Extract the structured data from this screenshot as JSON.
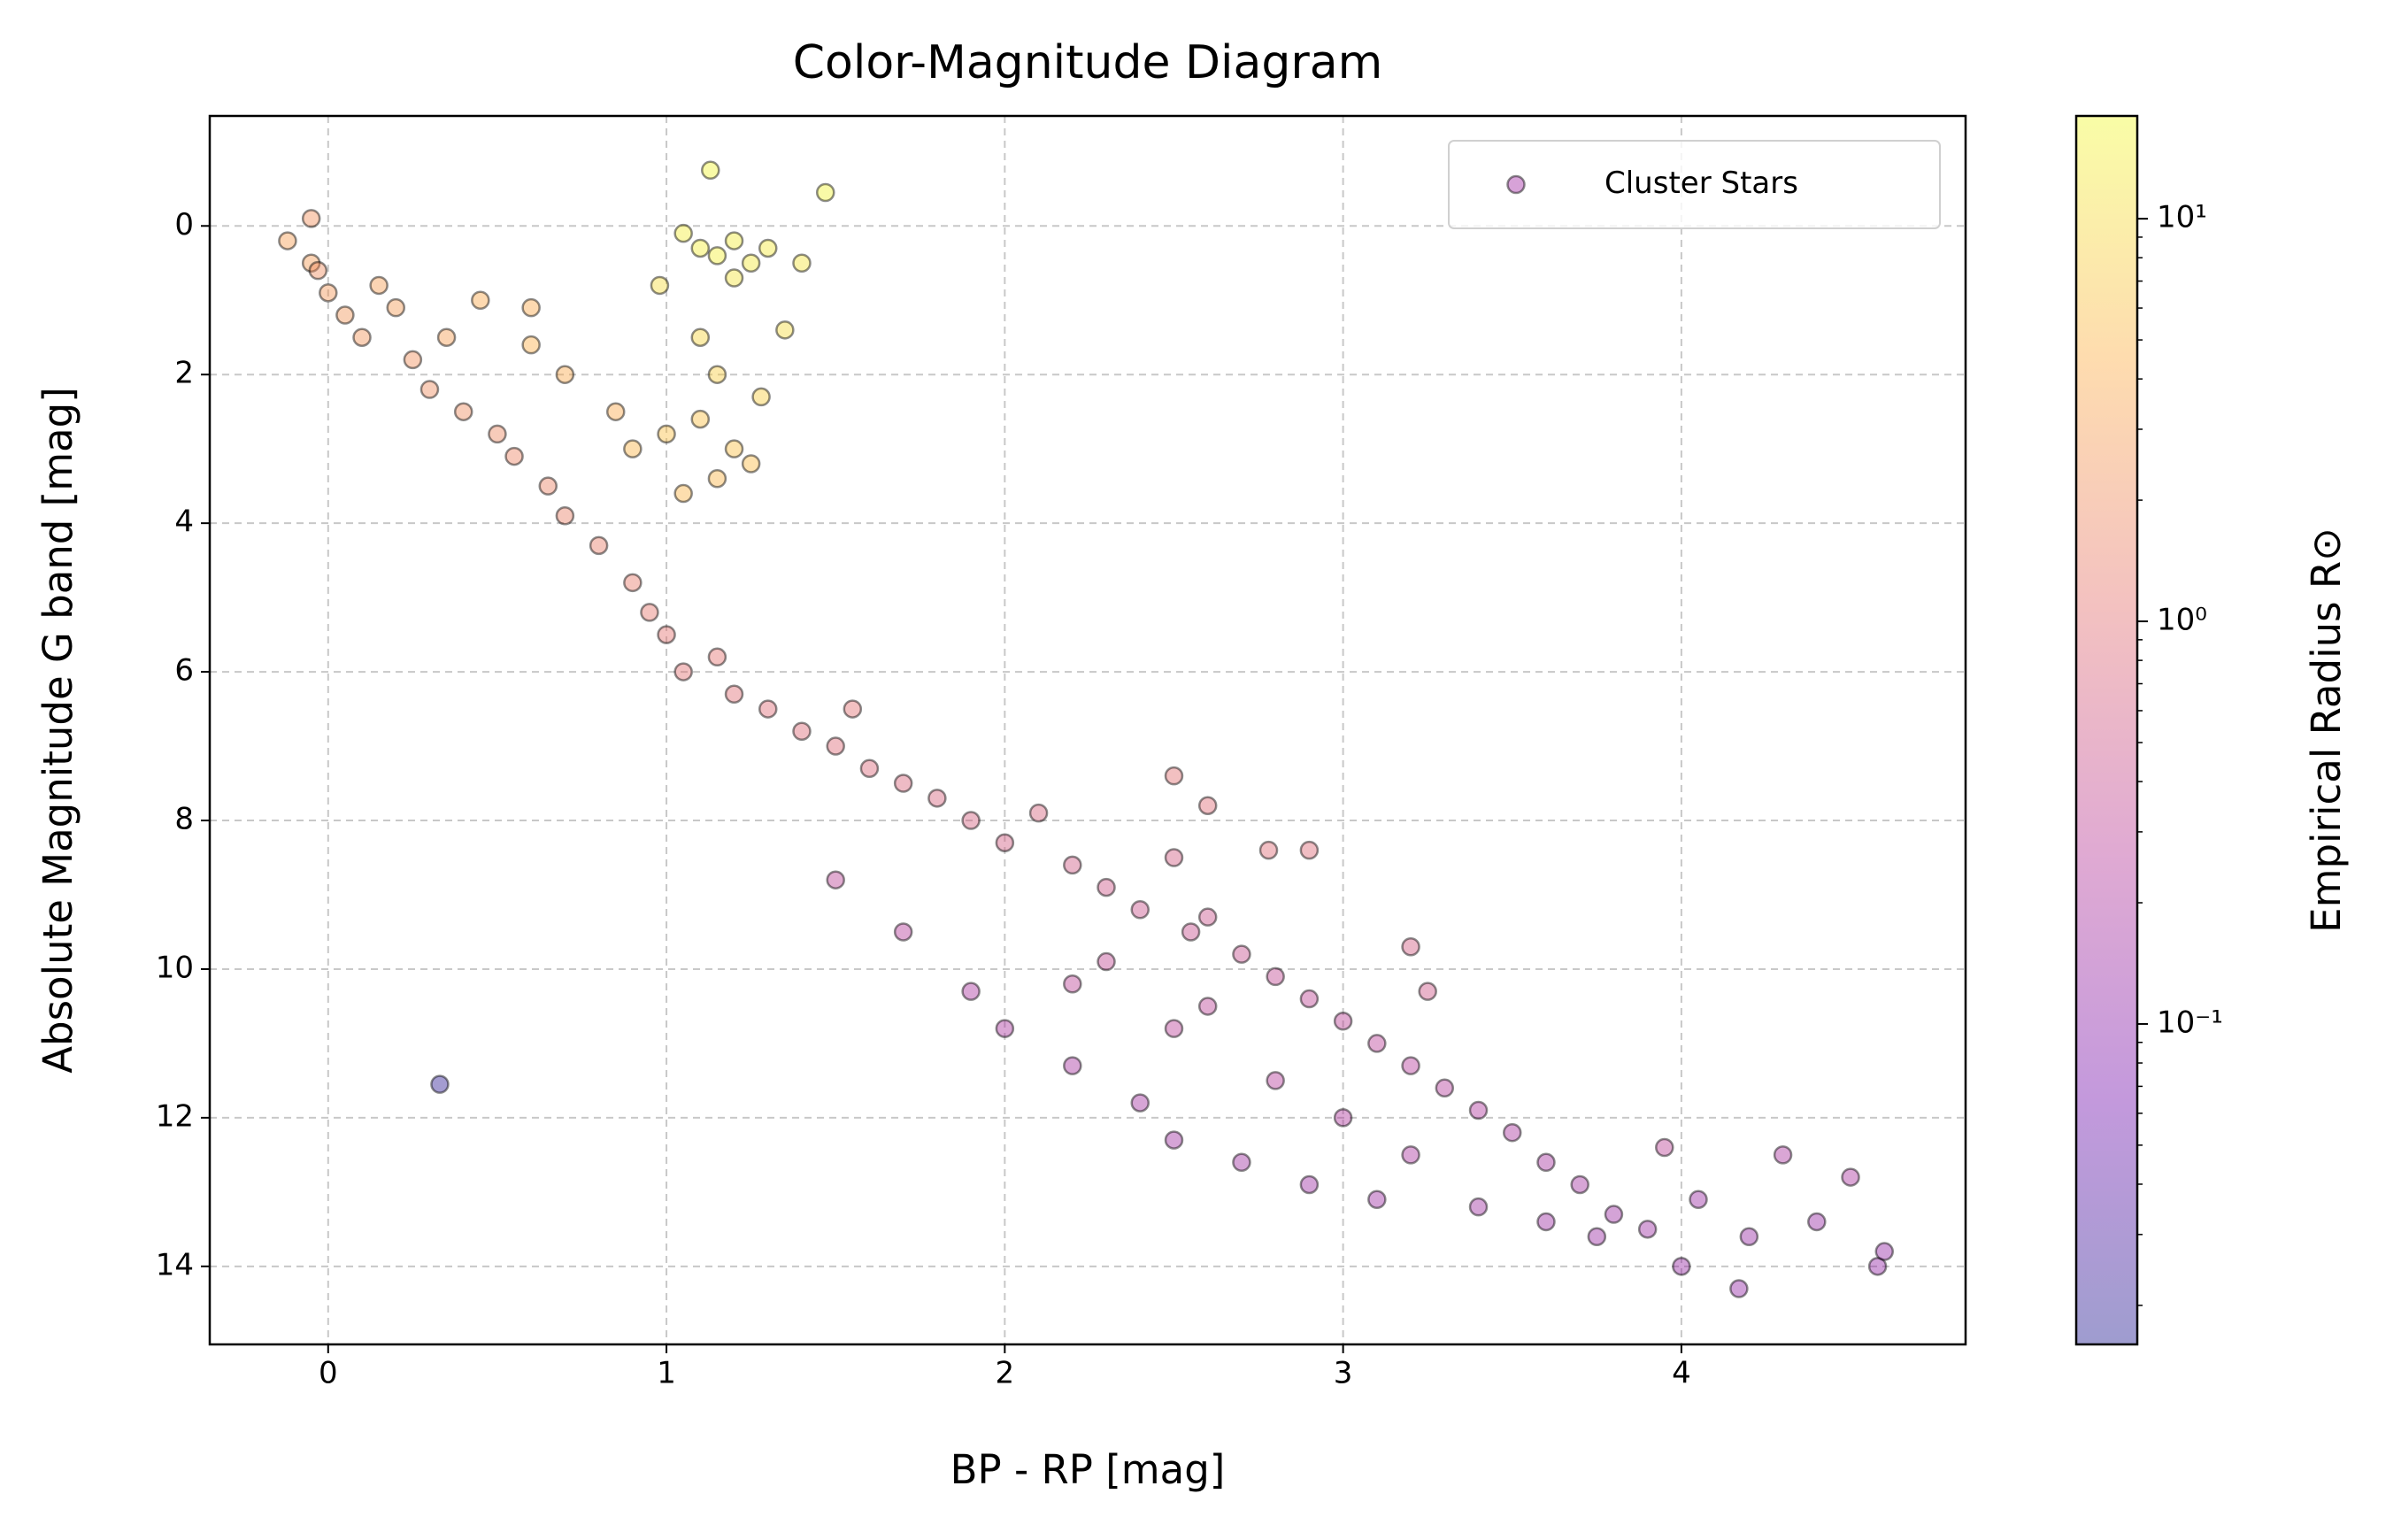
{
  "chart_data": {
    "type": "scatter",
    "title": "Color-Magnitude Diagram",
    "x_label": "BP - RP [mag]",
    "y_label": "Absolute Magnitude G band [mag]",
    "xlim": [
      -0.35,
      4.84
    ],
    "ylim": [
      15.05,
      -1.48
    ],
    "xticks": [
      0,
      1,
      2,
      3,
      4
    ],
    "yticks": [
      0,
      2,
      4,
      6,
      8,
      10,
      12,
      14
    ],
    "grid": true,
    "legend": "upper right",
    "series": [
      {
        "name": "Cluster Stars",
        "color": "#9c179e",
        "x": [
          -0.12,
          -0.05,
          0.0,
          0.05,
          0.1,
          0.2,
          0.25,
          0.3,
          0.35,
          0.4,
          0.45,
          0.5,
          0.55,
          0.6,
          0.65,
          0.7,
          0.7,
          0.8,
          0.85,
          0.9,
          0.95,
          -0.05,
          -0.03,
          0.15,
          0.6,
          1.05,
          1.1,
          1.15,
          1.2,
          1.25,
          1.3,
          1.2,
          1.1,
          1.15,
          1.1,
          1.2,
          1.15,
          1.05,
          1.25,
          1.0,
          0.9,
          1.13,
          1.47,
          0.98,
          1.35,
          1.4,
          1.28,
          1.0,
          1.05,
          1.15,
          1.2,
          1.3,
          1.4,
          1.5,
          1.55,
          1.6,
          1.7,
          1.8,
          1.9,
          2.0,
          2.1,
          2.2,
          2.3,
          2.4,
          2.5,
          2.55,
          2.6,
          2.7,
          2.8,
          2.9,
          3.0,
          3.1,
          3.2,
          3.3,
          3.4,
          3.5,
          3.6,
          3.7,
          3.8,
          3.75,
          3.6,
          3.4,
          1.5,
          1.7,
          1.9,
          2.0,
          2.2,
          2.4,
          2.5,
          2.7,
          2.9,
          3.1,
          2.2,
          2.5,
          2.8,
          3.0,
          2.3,
          2.6,
          3.2,
          3.9,
          4.0,
          4.05,
          4.2,
          4.3,
          4.4,
          4.5,
          4.58,
          4.6,
          4.17,
          2.5,
          2.6,
          2.78,
          2.9,
          3.2,
          3.25,
          3.95,
          0.33
        ],
        "values": [
          0.2,
          0.5,
          0.9,
          1.2,
          1.5,
          1.1,
          1.8,
          2.2,
          1.5,
          2.5,
          1.0,
          2.8,
          3.1,
          1.6,
          3.5,
          2.0,
          3.9,
          4.3,
          2.5,
          4.8,
          5.2,
          -0.1,
          0.6,
          0.8,
          1.1,
          0.1,
          0.3,
          0.4,
          0.2,
          0.5,
          0.3,
          0.7,
          1.5,
          2.0,
          2.6,
          3.0,
          3.4,
          3.6,
          3.2,
          2.8,
          3.0,
          -0.75,
          -0.45,
          0.8,
          1.4,
          0.5,
          2.3,
          5.5,
          6.0,
          5.8,
          6.3,
          6.5,
          6.8,
          7.0,
          6.5,
          7.3,
          7.5,
          7.7,
          8.0,
          8.3,
          7.9,
          8.6,
          8.9,
          9.2,
          8.5,
          9.5,
          9.3,
          9.8,
          10.1,
          10.4,
          10.7,
          11.0,
          11.3,
          11.6,
          11.9,
          12.2,
          12.6,
          12.9,
          13.3,
          13.6,
          13.4,
          13.2,
          8.8,
          9.5,
          10.3,
          10.8,
          11.3,
          11.8,
          12.3,
          12.6,
          12.9,
          13.1,
          10.2,
          10.8,
          11.5,
          12.0,
          9.9,
          10.5,
          12.5,
          13.5,
          14.0,
          13.1,
          13.6,
          12.5,
          13.4,
          12.8,
          14.0,
          13.8,
          14.3,
          7.4,
          7.8,
          8.4,
          8.4,
          9.7,
          10.3,
          12.4,
          11.55
        ],
        "color_values": [
          3,
          2.8,
          2.6,
          2.5,
          2.4,
          2.8,
          2.2,
          2.0,
          3,
          2.0,
          4,
          1.8,
          1.7,
          4.5,
          1.6,
          4,
          1.5,
          1.4,
          4,
          1.3,
          1.2,
          2.2,
          2,
          3,
          4,
          14,
          14,
          15,
          14,
          13,
          13,
          12,
          9,
          8,
          6,
          6,
          5,
          5,
          5.5,
          6,
          5,
          16,
          16,
          10,
          10,
          12,
          8,
          1.1,
          1.0,
          1.1,
          0.95,
          0.9,
          0.85,
          0.85,
          1.0,
          0.8,
          0.75,
          0.7,
          0.65,
          0.6,
          0.7,
          0.55,
          0.5,
          0.45,
          0.6,
          0.42,
          0.45,
          0.4,
          0.35,
          0.32,
          0.3,
          0.28,
          0.26,
          0.24,
          0.22,
          0.2,
          0.18,
          0.17,
          0.15,
          0.14,
          0.15,
          0.16,
          0.3,
          0.25,
          0.2,
          0.2,
          0.18,
          0.17,
          0.16,
          0.16,
          0.15,
          0.15,
          0.3,
          0.28,
          0.25,
          0.22,
          0.35,
          0.3,
          0.2,
          0.15,
          0.13,
          0.14,
          0.13,
          0.2,
          0.13,
          0.2,
          0.12,
          0.12,
          0.12,
          1.0,
          0.9,
          0.9,
          0.85,
          0.6,
          0.5,
          0.3,
          0.02
        ]
      }
    ],
    "colorbar": {
      "label": "Empirical Radius R⊙",
      "scale": "log",
      "lim": [
        0.016,
        18
      ],
      "ticks": [
        {
          "value": 10,
          "label": "10¹"
        },
        {
          "value": 1,
          "label": "10⁰"
        },
        {
          "value": 0.1,
          "label": "10⁻¹"
        }
      ],
      "colormap": [
        "#0d0887",
        "#6a00a8",
        "#b12a90",
        "#e16462",
        "#fca636",
        "#f0f921"
      ],
      "alpha": 0.4
    }
  }
}
